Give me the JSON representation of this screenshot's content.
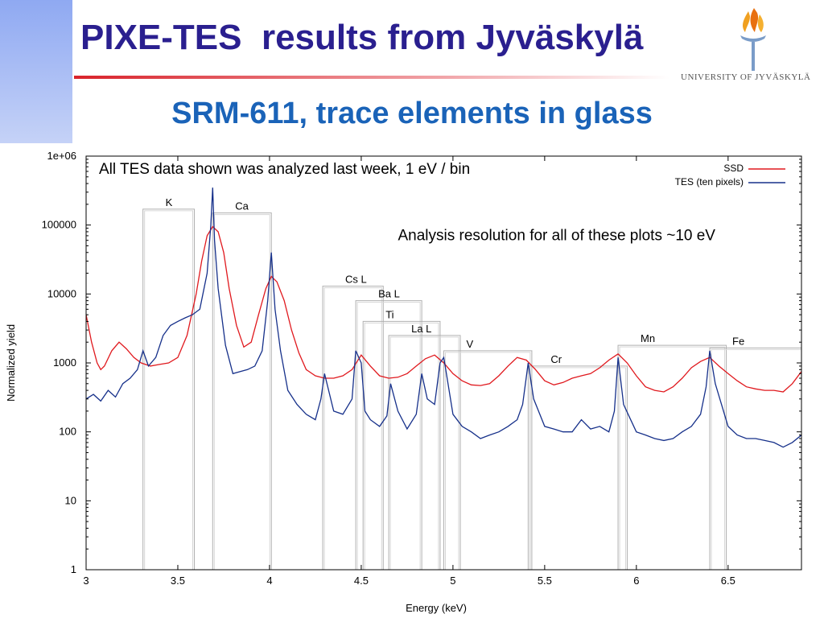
{
  "slide": {
    "title": "PIXE-TES  results from Jyväskylä",
    "subtitle": "SRM-611, trace elements in glass",
    "logo_text": "UNIVERSITY OF JYVÄSKYLÄ"
  },
  "colors": {
    "title": "#2a1f8f",
    "subtitle": "#1a63b8",
    "ssd": "#e0191e",
    "tes": "#16308a",
    "accent_bar": "#8fa9f2"
  },
  "chart_data": {
    "type": "line",
    "title": "",
    "xlabel": "Energy (keV)",
    "ylabel": "Normalized yield",
    "xlim": [
      3,
      6.9
    ],
    "ylim": [
      1,
      1000000
    ],
    "yscale": "log",
    "grid": false,
    "legend_position": "top-right",
    "xticks": [
      {
        "value": 3,
        "label": "3"
      },
      {
        "value": 3.5,
        "label": "3.5"
      },
      {
        "value": 4,
        "label": "4"
      },
      {
        "value": 4.5,
        "label": "4.5"
      },
      {
        "value": 5,
        "label": "5"
      },
      {
        "value": 5.5,
        "label": "5.5"
      },
      {
        "value": 6,
        "label": "6"
      },
      {
        "value": 6.5,
        "label": "6.5"
      }
    ],
    "yticks": [
      {
        "value": 1,
        "label": "1"
      },
      {
        "value": 10,
        "label": "10"
      },
      {
        "value": 100,
        "label": "100"
      },
      {
        "value": 1000,
        "label": "1000"
      },
      {
        "value": 10000,
        "label": "10000"
      },
      {
        "value": 100000,
        "label": "100000"
      },
      {
        "value": 1000000,
        "label": "1e+06"
      }
    ],
    "annotations": [
      {
        "text": "All TES data shown was analyzed last week, 1 eV / bin",
        "x": 3.07,
        "y": 550000
      },
      {
        "text": "Analysis resolution for all of these plots ~10 eV",
        "x": 4.7,
        "y": 60000
      }
    ],
    "element_markers": [
      {
        "label": "K",
        "x1": 3.31,
        "x2": 3.59,
        "top": 170000
      },
      {
        "label": "Ca",
        "x1": 3.69,
        "x2": 4.01,
        "top": 150000
      },
      {
        "label": "Cs L",
        "x1": 4.29,
        "x2": 4.62,
        "top": 13000
      },
      {
        "label": "Ba L",
        "x1": 4.47,
        "x2": 4.83,
        "top": 8000
      },
      {
        "label": "Ti",
        "x1": 4.51,
        "x2": 4.93,
        "top": 4000
      },
      {
        "label": "La L",
        "x1": 4.65,
        "x2": 5.04,
        "top": 2500
      },
      {
        "label": "V",
        "x1": 4.95,
        "x2": 5.43,
        "top": 1500
      },
      {
        "label": "Cr",
        "x1": 5.41,
        "x2": 5.95,
        "top": 900
      },
      {
        "label": "Mn",
        "x1": 5.9,
        "x2": 6.49,
        "top": 1800
      },
      {
        "label": "Fe",
        "x1": 6.4,
        "x2": 7.06,
        "top": 1650
      }
    ],
    "series": [
      {
        "name": "SSD",
        "color": "#e0191e",
        "x": [
          3.0,
          3.03,
          3.06,
          3.08,
          3.1,
          3.14,
          3.18,
          3.22,
          3.26,
          3.3,
          3.35,
          3.4,
          3.45,
          3.5,
          3.55,
          3.6,
          3.63,
          3.66,
          3.69,
          3.72,
          3.75,
          3.78,
          3.82,
          3.86,
          3.9,
          3.94,
          3.98,
          4.01,
          4.04,
          4.08,
          4.12,
          4.16,
          4.2,
          4.25,
          4.3,
          4.35,
          4.4,
          4.45,
          4.5,
          4.55,
          4.6,
          4.65,
          4.7,
          4.75,
          4.8,
          4.85,
          4.9,
          4.95,
          5.0,
          5.05,
          5.1,
          5.15,
          5.2,
          5.25,
          5.3,
          5.35,
          5.4,
          5.45,
          5.5,
          5.55,
          5.6,
          5.65,
          5.7,
          5.75,
          5.8,
          5.85,
          5.9,
          5.95,
          6.0,
          6.05,
          6.1,
          6.15,
          6.2,
          6.25,
          6.3,
          6.35,
          6.4,
          6.45,
          6.5,
          6.55,
          6.6,
          6.65,
          6.7,
          6.75,
          6.8,
          6.85,
          6.9
        ],
        "y": [
          5000,
          2000,
          1000,
          800,
          900,
          1500,
          2000,
          1600,
          1200,
          1000,
          900,
          950,
          1000,
          1200,
          2500,
          10000,
          30000,
          70000,
          95000,
          80000,
          40000,
          12000,
          3500,
          1700,
          2000,
          5000,
          12000,
          18000,
          15000,
          8000,
          3000,
          1400,
          800,
          650,
          600,
          600,
          650,
          800,
          1300,
          900,
          650,
          600,
          620,
          700,
          900,
          1150,
          1300,
          1000,
          700,
          550,
          480,
          470,
          500,
          650,
          900,
          1200,
          1100,
          800,
          550,
          480,
          520,
          600,
          650,
          700,
          850,
          1100,
          1350,
          1000,
          650,
          450,
          400,
          380,
          450,
          600,
          850,
          1050,
          1200,
          900,
          700,
          550,
          450,
          420,
          400,
          400,
          380,
          500,
          750
        ]
      },
      {
        "name": "TES (ten pixels)",
        "color": "#16308a",
        "x": [
          3.0,
          3.04,
          3.08,
          3.12,
          3.16,
          3.2,
          3.24,
          3.28,
          3.31,
          3.34,
          3.38,
          3.42,
          3.46,
          3.5,
          3.54,
          3.58,
          3.62,
          3.66,
          3.68,
          3.69,
          3.7,
          3.72,
          3.76,
          3.8,
          3.84,
          3.88,
          3.92,
          3.96,
          3.99,
          4.01,
          4.03,
          4.06,
          4.1,
          4.15,
          4.2,
          4.25,
          4.28,
          4.3,
          4.35,
          4.4,
          4.45,
          4.47,
          4.5,
          4.52,
          4.55,
          4.6,
          4.64,
          4.66,
          4.7,
          4.75,
          4.8,
          4.83,
          4.86,
          4.9,
          4.93,
          4.95,
          5.0,
          5.05,
          5.1,
          5.15,
          5.2,
          5.25,
          5.3,
          5.35,
          5.38,
          5.41,
          5.44,
          5.5,
          5.55,
          5.6,
          5.65,
          5.7,
          5.75,
          5.8,
          5.85,
          5.88,
          5.9,
          5.93,
          6.0,
          6.05,
          6.1,
          6.15,
          6.2,
          6.25,
          6.3,
          6.35,
          6.38,
          6.4,
          6.43,
          6.5,
          6.55,
          6.6,
          6.65,
          6.7,
          6.75,
          6.8,
          6.85,
          6.9
        ],
        "y": [
          300,
          350,
          280,
          400,
          320,
          500,
          600,
          800,
          1500,
          900,
          1200,
          2500,
          3500,
          4000,
          4500,
          5000,
          6000,
          20000,
          100000,
          350000,
          60000,
          12000,
          1800,
          700,
          750,
          800,
          900,
          1500,
          8000,
          40000,
          6000,
          1500,
          400,
          250,
          180,
          150,
          300,
          700,
          200,
          180,
          300,
          1500,
          1000,
          200,
          150,
          120,
          170,
          500,
          200,
          110,
          180,
          700,
          300,
          250,
          1000,
          1200,
          180,
          120,
          100,
          80,
          90,
          100,
          120,
          150,
          250,
          1000,
          300,
          120,
          110,
          100,
          100,
          150,
          110,
          120,
          100,
          200,
          1200,
          250,
          100,
          90,
          80,
          75,
          80,
          100,
          120,
          180,
          450,
          1500,
          500,
          120,
          90,
          80,
          80,
          75,
          70,
          60,
          70,
          90
        ]
      }
    ]
  }
}
